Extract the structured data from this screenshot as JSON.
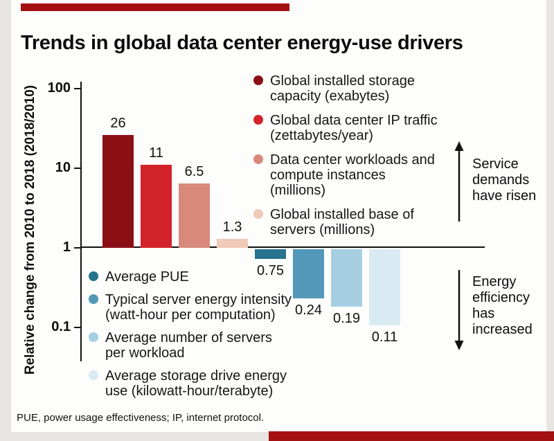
{
  "page": {
    "footnote": "PUE, power usage effectiveness; IP, internet protocol."
  },
  "chart_data": {
    "type": "bar",
    "title": "Trends in global data center energy-use drivers",
    "scale": "log10",
    "ylabel": "Relative change from 2010 to 2018 (2018/2010)",
    "xlabel": "",
    "ylim": [
      0.1,
      100
    ],
    "baseline": 1,
    "grid": false,
    "yticks": [
      {
        "label": "100",
        "value": 100
      },
      {
        "label": "10",
        "value": 10
      },
      {
        "label": "1",
        "value": 1
      },
      {
        "label": "0.1",
        "value": 0.1
      }
    ],
    "series": [
      {
        "name": "Global installed storage capacity (exabytes)",
        "value": 26,
        "label": "26",
        "color": "#8b1016",
        "group": "demand"
      },
      {
        "name": "Global data center IP traffic (zettabytes/year)",
        "value": 11,
        "label": "11",
        "color": "#d2232b",
        "group": "demand"
      },
      {
        "name": "Data center workloads and compute instances (millions)",
        "value": 6.5,
        "label": "6.5",
        "color": "#d8897c",
        "group": "demand"
      },
      {
        "name": "Global installed base of servers (millions)",
        "value": 1.3,
        "label": "1.3",
        "color": "#f0c9b7",
        "group": "demand"
      },
      {
        "name": "Average PUE",
        "value": 0.75,
        "label": "0.75",
        "color": "#27728f",
        "group": "efficiency"
      },
      {
        "name": "Typical server energy intensity (watt-hour per computation)",
        "value": 0.24,
        "label": "0.24",
        "color": "#5298b8",
        "group": "efficiency"
      },
      {
        "name": "Average number of servers per workload",
        "value": 0.19,
        "label": "0.19",
        "color": "#a6cfe2",
        "group": "efficiency"
      },
      {
        "name": "Average storage drive energy use (kilowatt-hour/terabyte)",
        "value": 0.11,
        "label": "0.11",
        "color": "#d9eaf2",
        "group": "efficiency"
      }
    ],
    "legend_position": {
      "demand": "top-right",
      "efficiency": "bottom-left"
    }
  },
  "annotations": {
    "demand": "Service demands have risen",
    "efficiency": "Energy efficiency has increased"
  },
  "colors": {
    "accent_red_band": "#a51113",
    "axis": "#111111"
  }
}
